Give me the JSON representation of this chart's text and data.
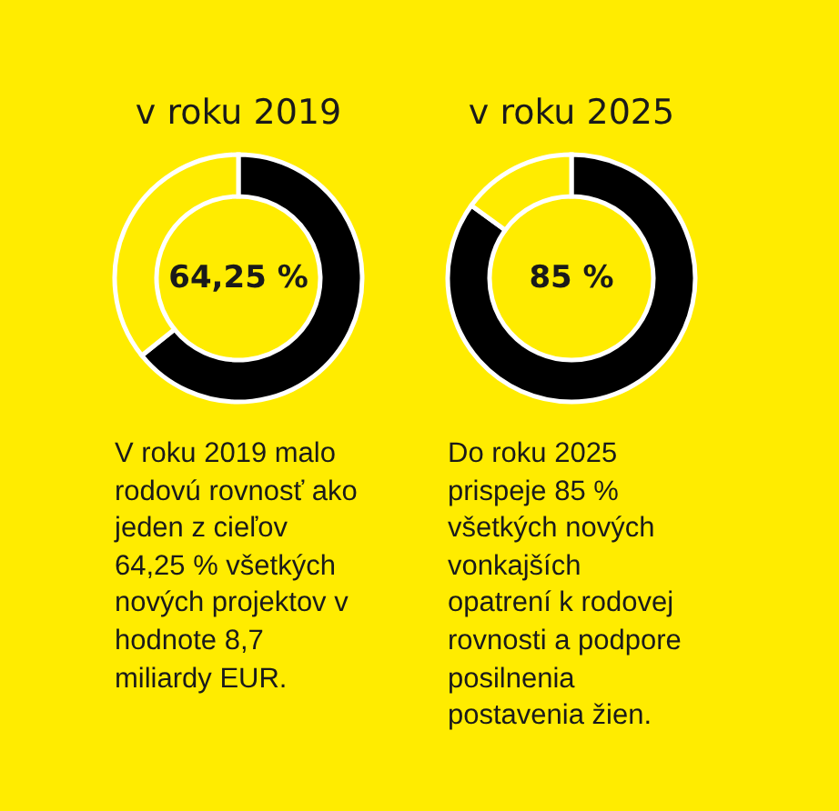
{
  "chart_data": [
    {
      "type": "donut",
      "title": "v roku 2019",
      "categories": [
        null,
        null
      ],
      "values": [
        64.25,
        35.75
      ],
      "colors": [
        "#000000",
        "#ffec00"
      ],
      "annotations": [
        "64,25 %",
        "V roku 2019 malo rodovú rovnosť ako jeden z cieľov 64,25 % všetkých nových projektov v hodnote 8,7 miliardy EUR."
      ]
    },
    {
      "type": "donut",
      "title": "v roku 2025",
      "categories": [
        null,
        null
      ],
      "values": [
        85,
        15
      ],
      "colors": [
        "#000000",
        "#ffec00"
      ],
      "annotations": [
        "85 %",
        "Do roku 2025 prispeje 85 % všetkých nových vonkajších opatrení k rodovej rovnosti a podpore posilnenia postavenia žien."
      ]
    }
  ]
}
